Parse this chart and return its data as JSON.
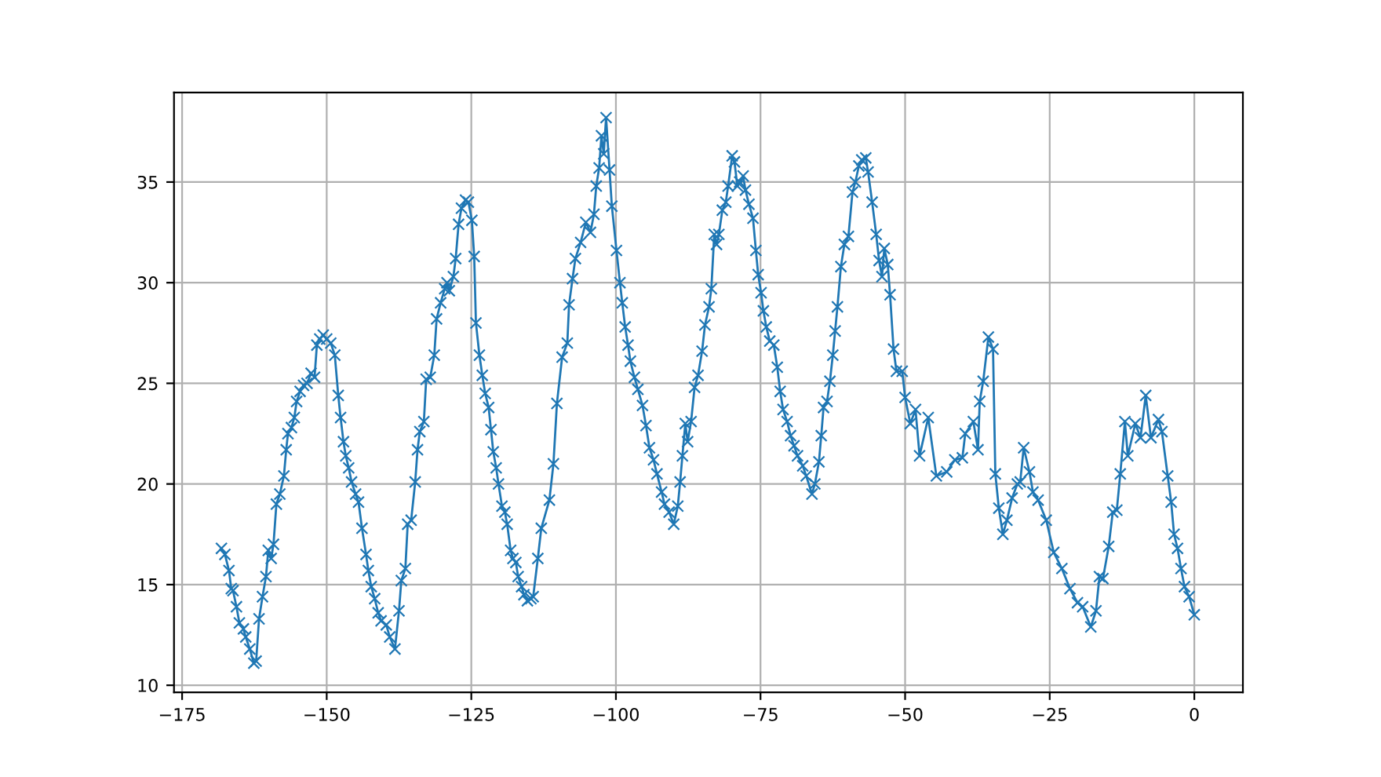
{
  "chart_data": {
    "type": "line",
    "marker": "cross",
    "grid": true,
    "xlim": [
      -176.4,
      8.4
    ],
    "ylim": [
      9.65,
      39.45
    ],
    "xticks": [
      {
        "value": -175,
        "label": "−175"
      },
      {
        "value": -150,
        "label": "−150"
      },
      {
        "value": -125,
        "label": "−125"
      },
      {
        "value": -100,
        "label": "−100"
      },
      {
        "value": -75,
        "label": "−75"
      },
      {
        "value": -50,
        "label": "−50"
      },
      {
        "value": -25,
        "label": "−25"
      },
      0
    ],
    "yticks": [
      10,
      15,
      20,
      25,
      30,
      35
    ],
    "series": [
      {
        "color": "#1f77b4",
        "x": [
          -168.2,
          -167.6,
          -166.9,
          -166.5,
          -166.2,
          -165.6,
          -165.1,
          -164.4,
          -164.0,
          -163.3,
          -162.6,
          -162.2,
          -161.7,
          -161.1,
          -160.5,
          -160.1,
          -159.6,
          -159.2,
          -158.7,
          -158.1,
          -157.4,
          -157.0,
          -156.7,
          -156.1,
          -155.6,
          -155.2,
          -154.6,
          -154.0,
          -153.4,
          -152.7,
          -152.1,
          -151.7,
          -151.2,
          -150.6,
          -150.0,
          -149.3,
          -148.6,
          -148.0,
          -147.6,
          -147.1,
          -146.7,
          -146.2,
          -145.7,
          -145.0,
          -144.5,
          -143.9,
          -143.2,
          -142.8,
          -142.3,
          -141.7,
          -141.1,
          -140.6,
          -139.7,
          -139.1,
          -138.2,
          -137.5,
          -137.1,
          -136.4,
          -136.0,
          -135.4,
          -134.7,
          -134.3,
          -133.9,
          -133.2,
          -132.8,
          -132.1,
          -131.4,
          -131.0,
          -130.3,
          -129.6,
          -129.2,
          -128.8,
          -128.1,
          -127.7,
          -127.2,
          -126.7,
          -126.0,
          -125.5,
          -124.9,
          -124.5,
          -124.2,
          -123.6,
          -123.1,
          -122.6,
          -122.0,
          -121.6,
          -121.2,
          -120.7,
          -120.3,
          -119.7,
          -119.2,
          -118.8,
          -118.2,
          -117.8,
          -117.3,
          -116.9,
          -116.3,
          -115.9,
          -115.3,
          -114.7,
          -114.3,
          -113.5,
          -112.9,
          -111.5,
          -110.8,
          -110.2,
          -109.3,
          -108.4,
          -108.1,
          -107.5,
          -107.0,
          -106.1,
          -105.2,
          -104.4,
          -103.8,
          -103.4,
          -102.9,
          -102.5,
          -102.1,
          -101.7,
          -101.1,
          -100.7,
          -99.9,
          -99.3,
          -98.9,
          -98.4,
          -97.9,
          -97.5,
          -96.8,
          -96.2,
          -95.4,
          -94.8,
          -94.2,
          -93.5,
          -92.9,
          -92.1,
          -91.6,
          -90.8,
          -90.0,
          -89.3,
          -88.9,
          -88.5,
          -88.0,
          -87.6,
          -87.0,
          -86.4,
          -85.8,
          -85.1,
          -84.6,
          -83.9,
          -83.5,
          -83.0,
          -82.6,
          -82.2,
          -81.6,
          -81.0,
          -80.6,
          -79.9,
          -79.5,
          -79.0,
          -78.6,
          -78.0,
          -77.6,
          -77.0,
          -76.3,
          -75.8,
          -75.4,
          -74.9,
          -74.5,
          -74.0,
          -73.4,
          -72.7,
          -72.1,
          -71.6,
          -71.1,
          -70.4,
          -69.8,
          -69.2,
          -68.6,
          -67.7,
          -67.1,
          -66.1,
          -65.6,
          -64.9,
          -64.5,
          -64.1,
          -63.5,
          -63.0,
          -62.5,
          -62.1,
          -61.7,
          -61.1,
          -60.5,
          -59.8,
          -59.1,
          -58.6,
          -58.0,
          -57.5,
          -56.8,
          -56.4,
          -55.7,
          -55.0,
          -54.5,
          -54.0,
          -53.6,
          -53.0,
          -52.6,
          -52.0,
          -51.5,
          -50.5,
          -50.0,
          -49.1,
          -48.2,
          -47.5,
          -46.0,
          -44.6,
          -42.8,
          -41.4,
          -40.1,
          -39.6,
          -38.2,
          -37.4,
          -37.1,
          -36.5,
          -35.6,
          -34.8,
          -34.4,
          -33.8,
          -33.1,
          -32.4,
          -31.5,
          -30.6,
          -30.1,
          -29.5,
          -28.5,
          -27.9,
          -27.0,
          -25.6,
          -24.3,
          -22.9,
          -21.5,
          -20.2,
          -19.3,
          -17.9,
          -17.0,
          -16.4,
          -15.8,
          -14.8,
          -14.1,
          -13.4,
          -12.8,
          -12.0,
          -11.5,
          -10.2,
          -9.3,
          -8.4,
          -7.5,
          -6.2,
          -5.6,
          -4.6,
          -4.0,
          -3.5,
          -2.9,
          -2.3,
          -1.7,
          -0.9,
          0.0
        ],
        "values": [
          16.8,
          16.5,
          15.7,
          14.8,
          14.7,
          13.9,
          13.1,
          12.8,
          12.4,
          11.8,
          11.1,
          11.2,
          13.3,
          14.4,
          15.4,
          16.7,
          16.3,
          17.0,
          19.0,
          19.5,
          20.4,
          21.7,
          22.5,
          22.8,
          23.3,
          24.1,
          24.6,
          24.9,
          25.0,
          25.5,
          25.3,
          26.9,
          27.2,
          27.4,
          27.2,
          27.0,
          26.4,
          24.4,
          23.3,
          22.1,
          21.4,
          20.8,
          20.1,
          19.5,
          19.1,
          17.8,
          16.5,
          15.7,
          14.9,
          14.3,
          13.6,
          13.2,
          13.0,
          12.4,
          11.8,
          13.7,
          15.2,
          15.8,
          18.0,
          18.2,
          20.1,
          21.7,
          22.6,
          23.1,
          25.2,
          25.3,
          26.4,
          28.2,
          29.0,
          29.7,
          30.0,
          29.6,
          30.3,
          31.2,
          32.9,
          33.7,
          34.1,
          34.0,
          33.1,
          31.3,
          28.0,
          26.4,
          25.4,
          24.5,
          23.8,
          22.7,
          21.6,
          20.8,
          20.0,
          18.9,
          18.6,
          18.0,
          16.7,
          16.3,
          16.1,
          15.4,
          14.9,
          14.5,
          14.2,
          14.3,
          14.4,
          16.3,
          17.8,
          19.2,
          21.0,
          24.0,
          26.3,
          27.0,
          28.9,
          30.2,
          31.2,
          32.0,
          33.0,
          32.5,
          33.4,
          34.8,
          35.7,
          37.3,
          36.4,
          38.2,
          35.6,
          33.8,
          31.6,
          30.0,
          29.0,
          27.8,
          26.9,
          26.1,
          25.3,
          24.7,
          23.9,
          22.9,
          21.8,
          21.2,
          20.5,
          19.6,
          19.0,
          18.6,
          18.0,
          18.9,
          20.1,
          21.4,
          23.0,
          22.1,
          23.1,
          24.8,
          25.4,
          26.6,
          27.9,
          28.8,
          29.7,
          32.4,
          31.9,
          32.4,
          33.6,
          34.0,
          34.8,
          36.3,
          36.0,
          34.8,
          35.0,
          35.3,
          34.6,
          33.9,
          33.2,
          31.6,
          30.4,
          29.5,
          28.6,
          27.8,
          27.1,
          26.9,
          25.8,
          24.6,
          23.7,
          23.1,
          22.4,
          21.9,
          21.4,
          20.9,
          20.4,
          19.5,
          20.0,
          21.1,
          22.4,
          23.8,
          24.1,
          25.1,
          26.4,
          27.6,
          28.8,
          30.8,
          31.9,
          32.3,
          34.5,
          35.0,
          35.8,
          36.1,
          36.2,
          35.5,
          34.0,
          32.4,
          31.1,
          30.3,
          31.7,
          30.9,
          29.4,
          26.7,
          25.6,
          25.6,
          24.3,
          23.0,
          23.7,
          21.4,
          23.3,
          20.4,
          20.6,
          21.2,
          21.3,
          22.5,
          23.1,
          21.7,
          24.1,
          25.1,
          27.3,
          26.7,
          20.5,
          18.8,
          17.5,
          18.2,
          19.3,
          20.0,
          20.1,
          21.8,
          20.6,
          19.6,
          19.2,
          18.2,
          16.6,
          15.8,
          14.8,
          14.1,
          13.9,
          12.9,
          13.7,
          15.4,
          15.3,
          16.9,
          18.6,
          18.7,
          20.5,
          23.1,
          21.4,
          23.0,
          22.3,
          24.4,
          22.3,
          23.2,
          22.6,
          20.4,
          19.1,
          17.5,
          16.8,
          15.8,
          14.9,
          14.4,
          13.5
        ]
      }
    ]
  }
}
